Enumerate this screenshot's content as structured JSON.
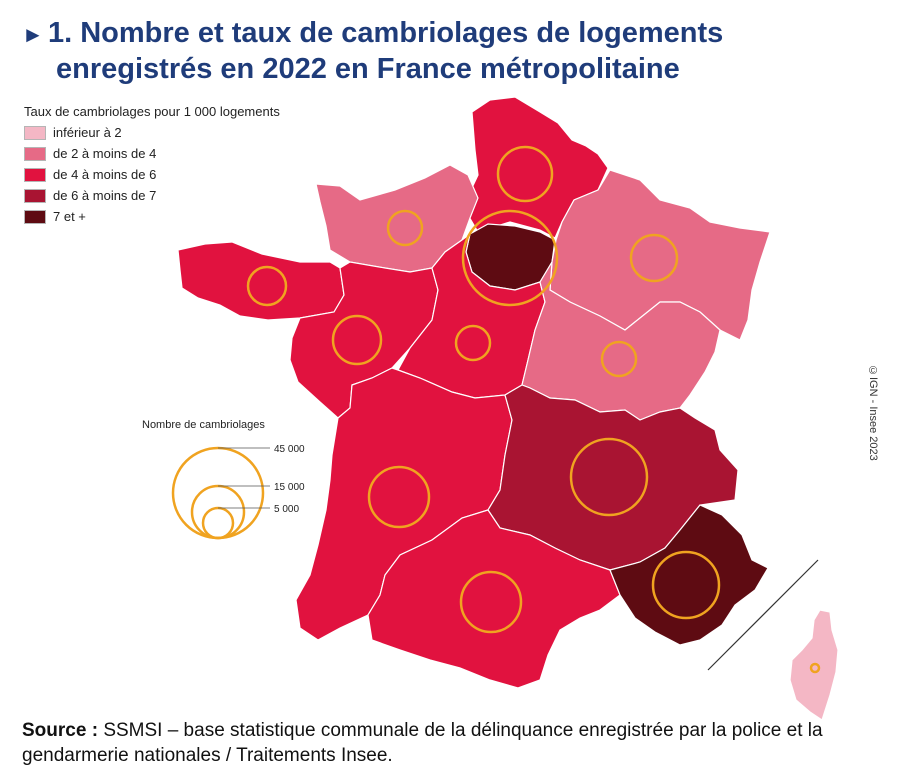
{
  "title": {
    "marker": "►",
    "line1": "1. Nombre et taux de cambriolages de logements",
    "line2": "enregistrés en 2022 en France métropolitaine"
  },
  "legend": {
    "title": "Taux de cambriolages pour 1 000 logements",
    "items": [
      {
        "label": "inférieur à 2",
        "color": "#f4b7c5"
      },
      {
        "label": "de 2 à moins de 4",
        "color": "#e66a86"
      },
      {
        "label": "de 4 à moins de 6",
        "color": "#e1123f"
      },
      {
        "label": "de 6 à moins de 7",
        "color": "#a91432"
      },
      {
        "label": "7 et +",
        "color": "#5e0b12"
      }
    ]
  },
  "size_legend": {
    "title": "Nombre de cambriolages",
    "values": [
      "45 000",
      "15 000",
      "5 000"
    ],
    "circle_color": "#f0a320"
  },
  "credit": "©IGN - Insee 2023",
  "source": {
    "label": "Source :",
    "text": "SSMSI – base statistique communale de la délinquance enregistrée par la police et la gendarmerie nationales / Traitements Insee."
  }
}
